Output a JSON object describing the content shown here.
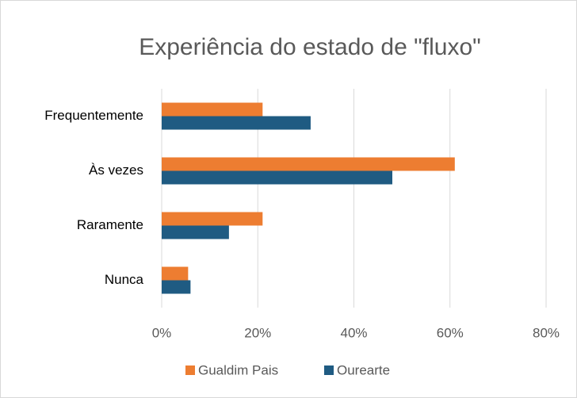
{
  "chart_data": {
    "type": "barh",
    "title": "Experiência do estado de \"fluxo\"",
    "categories": [
      "Frequentemente",
      "Às vezes",
      "Raramente",
      "Nunca"
    ],
    "series": [
      {
        "name": "Gualdim Pais",
        "color": "#ed7d31",
        "values": [
          21,
          61,
          21,
          5.5
        ]
      },
      {
        "name": "Ourearte",
        "color": "#1f5b82",
        "values": [
          31,
          48,
          14,
          6
        ]
      }
    ],
    "xlim": [
      0,
      80
    ],
    "xticks": [
      {
        "value": 0,
        "label": "0%"
      },
      {
        "value": 20,
        "label": "20%"
      },
      {
        "value": 40,
        "label": "40%"
      },
      {
        "value": 60,
        "label": "60%"
      },
      {
        "value": 80,
        "label": "80%"
      }
    ],
    "grid": true,
    "legend": "bottom"
  }
}
